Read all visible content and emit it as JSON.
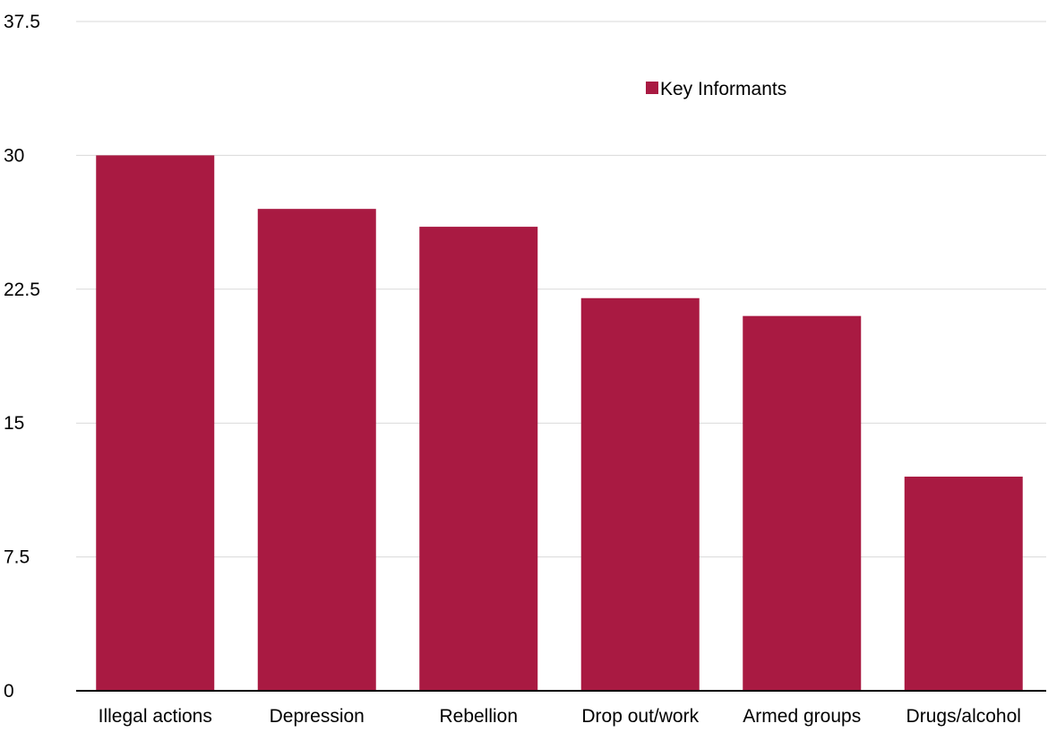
{
  "chart_data": {
    "type": "bar",
    "categories": [
      "Illegal actions",
      "Depression",
      "Rebellion",
      "Drop out/work",
      "Armed groups",
      "Drugs/alcohol"
    ],
    "series": [
      {
        "name": "Key Informants",
        "values": [
          30,
          27,
          26,
          22,
          21,
          12
        ]
      }
    ],
    "yticks": [
      "0",
      "7.5",
      "15",
      "22.5",
      "30",
      "37.5"
    ],
    "ylim": [
      0,
      37.5
    ],
    "grid": true,
    "legend": {
      "position": "top-right"
    },
    "colors": {
      "bar": "#a91a42",
      "grid": "#d9d9d9",
      "axis": "#000000"
    }
  }
}
